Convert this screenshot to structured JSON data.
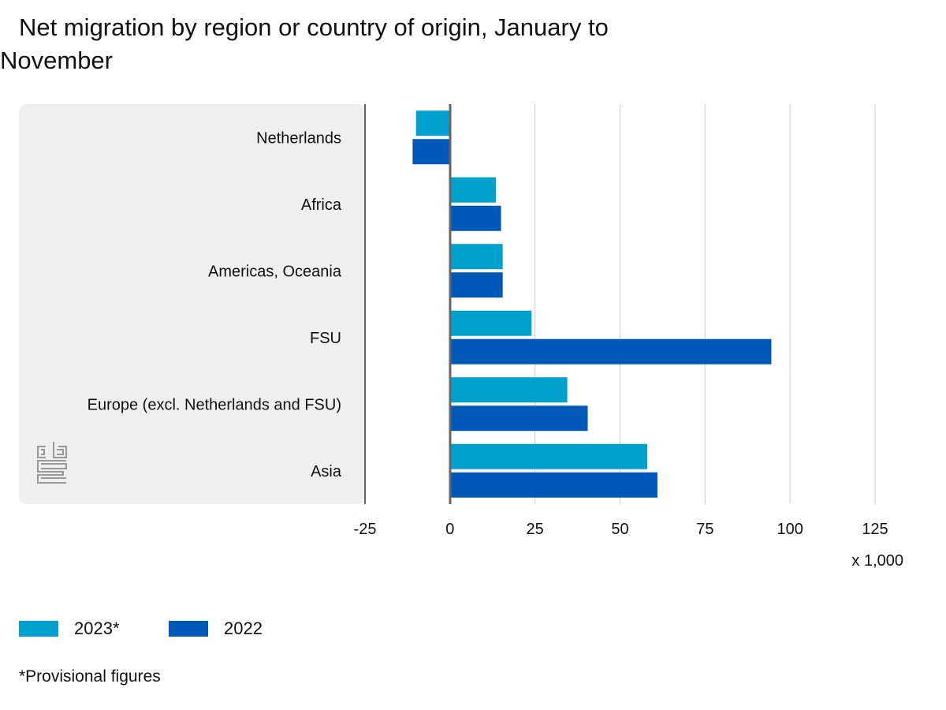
{
  "chart_data": {
    "type": "bar",
    "orientation": "horizontal",
    "title": "Net migration by region or country of origin, January to November",
    "categories": [
      "Netherlands",
      "Africa",
      "Americas, Oceania",
      "FSU",
      "Europe (excl. Netherlands and FSU)",
      "Asia"
    ],
    "series": [
      {
        "name": "2023*",
        "color": "#00a1cd",
        "values": [
          -10,
          13.5,
          15.5,
          24,
          34.5,
          58
        ]
      },
      {
        "name": "2022",
        "color": "#0058b8",
        "values": [
          -11,
          15,
          15.5,
          94.5,
          40.5,
          61
        ]
      }
    ],
    "xlim": [
      -25,
      125
    ],
    "xticks": [
      "-25",
      "0",
      "25",
      "50",
      "75",
      "100",
      "125"
    ],
    "x_unit": "x 1,000",
    "grid": true,
    "legend_position": "bottom-left",
    "footnote": "*Provisional figures",
    "logo": "cbs"
  }
}
